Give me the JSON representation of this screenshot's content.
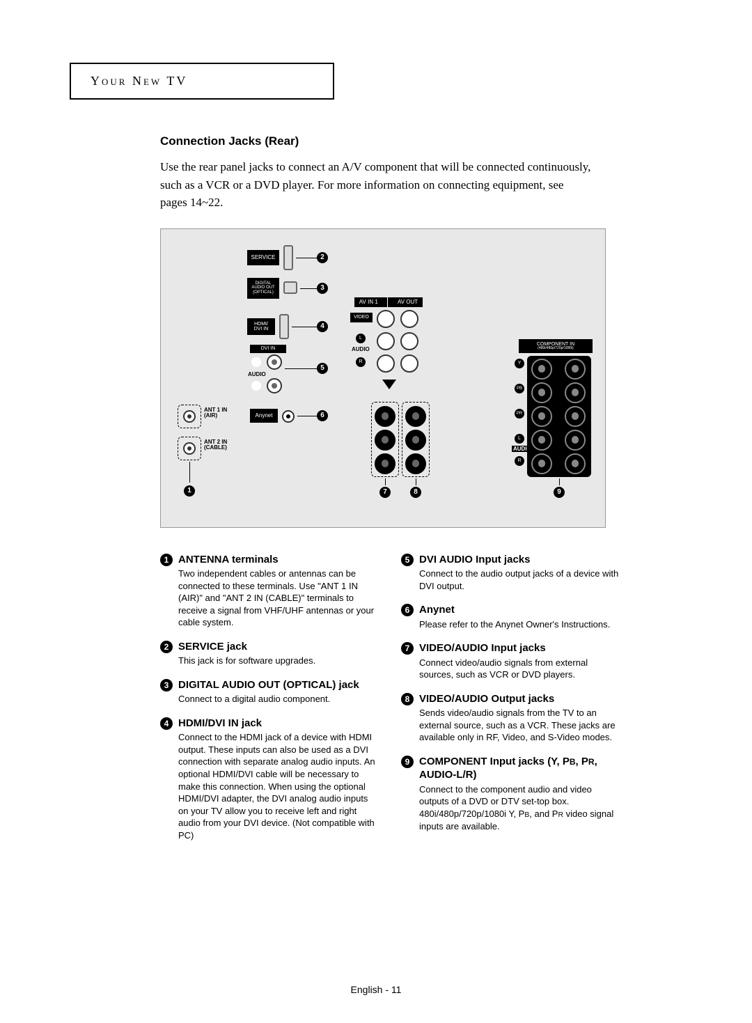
{
  "header": "Your New TV",
  "section_title": "Connection Jacks (Rear)",
  "intro": "Use the rear panel jacks to connect an A/V component that will be connected continuously, such as a VCR or a DVD player. For more information on connecting equipment, see pages 14~22.",
  "diagram": {
    "labels": {
      "service": "SERVICE",
      "digital_audio": "DIGITAL AUDIO OUT (OPTICAL)",
      "hdmi_dvi": "HDMI/ DVI IN",
      "dvi_in": "DVI IN",
      "audio": "AUDIO",
      "l": "L",
      "r": "R",
      "anynet": "Anynet",
      "ant1": "ANT 1 IN (AIR)",
      "ant2": "ANT 2 IN (CABLE)",
      "av_in1": "AV IN 1",
      "av_out": "AV OUT",
      "video": "VIDEO",
      "component_in": "COMPONENT IN (480i/480p/720p/1080i)",
      "y": "Y",
      "pb": "PB",
      "pr": "PR"
    }
  },
  "entries": [
    {
      "num": "1",
      "title": "ANTENNA terminals",
      "desc": "Two independent cables or antennas can be connected to these terminals. Use \"ANT 1 IN (AIR)\" and \"ANT 2 IN (CABLE)\" terminals to receive a signal from VHF/UHF antennas or your cable system."
    },
    {
      "num": "2",
      "title": "SERVICE jack",
      "desc": "This jack is for software upgrades."
    },
    {
      "num": "3",
      "title": "DIGITAL AUDIO OUT (OPTICAL) jack",
      "desc": "Connect to a digital audio component."
    },
    {
      "num": "4",
      "title": "HDMI/DVI IN jack",
      "desc": "Connect to the HDMI jack of a device with HDMI output. These inputs can also be used as a DVI connection with separate analog audio inputs. An optional HDMI/DVI cable will be necessary to make this connection. When using the optional HDMI/DVI adapter, the DVI analog audio inputs on your TV allow you to receive left and right audio from your DVI device. (Not compatible with PC)"
    },
    {
      "num": "5",
      "title": "DVI AUDIO Input jacks",
      "desc": "Connect to the audio output jacks of a device with DVI output."
    },
    {
      "num": "6",
      "title": "Anynet",
      "desc": "Please refer to the Anynet Owner's Instructions."
    },
    {
      "num": "7",
      "title": "VIDEO/AUDIO Input jacks",
      "desc": "Connect video/audio signals from external sources, such as VCR or DVD players."
    },
    {
      "num": "8",
      "title": "VIDEO/AUDIO Output jacks",
      "desc": "Sends video/audio signals from the TV to an external source, such as a VCR. These jacks are available only in RF, Video, and S-Video modes."
    },
    {
      "num": "9",
      "title_html": "COMPONENT Input jacks (Y, P<span class='smallcap'>B</span>, P<span class='smallcap'>R</span>, AUDIO-L/R)",
      "desc_html": "Connect to the component audio and video outputs of a DVD or DTV set-top box. 480i/480p/720p/1080i Y, P<span class='smallcap'>B</span>, and P<span class='smallcap'>R</span> video signal inputs are available."
    }
  ],
  "footer": "English - 11"
}
